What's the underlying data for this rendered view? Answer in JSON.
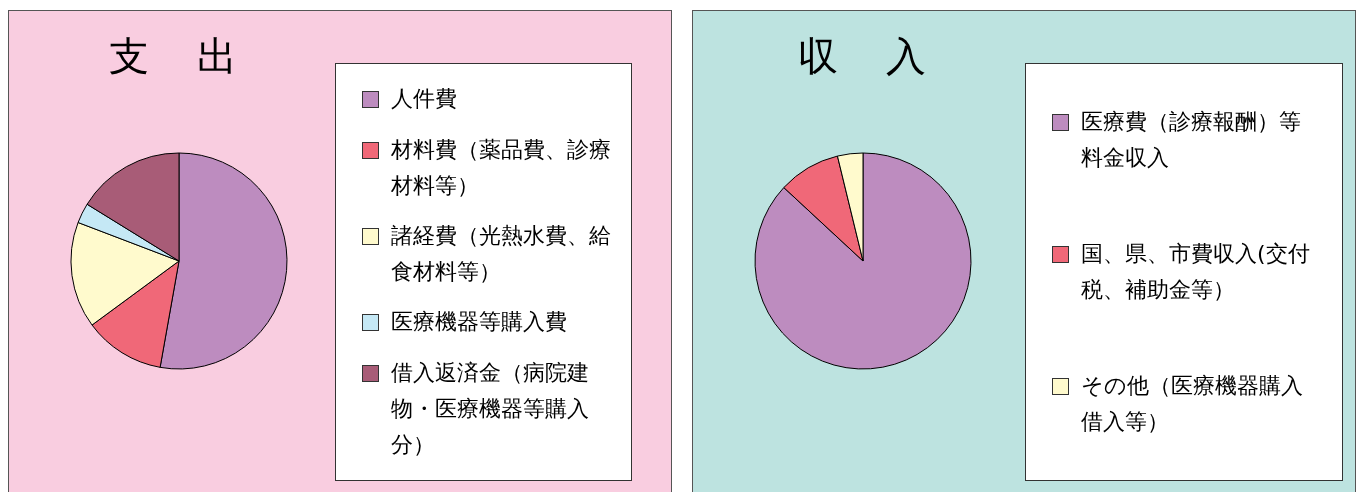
{
  "chart_data": [
    {
      "type": "pie",
      "title": "支　出",
      "categories": [
        "人件費",
        "材料費（薬品費、診療材料等）",
        "諸経費（光熱水費、給食材料等）",
        "医療機器等購入費",
        "借入返済金（病院建物・医療機器等購入分）"
      ],
      "values": [
        52.8,
        12.1,
        15.9,
        3,
        16.2
      ],
      "colors": [
        "#bd8cbf",
        "#f06878",
        "#fffacd",
        "#c5e8f5",
        "#a85c77"
      ],
      "legend": "right"
    },
    {
      "type": "pie",
      "title": "収　入",
      "categories": [
        "医療費（診療報酬）等料金収入",
        "国、県、市費収入(交付税、補助金等）",
        "その他（医療機器購入借入等）"
      ],
      "values": [
        86.9,
        9.3,
        3.8
      ],
      "colors": [
        "#bd8cbf",
        "#f06878",
        "#fffacd"
      ],
      "legend": "right"
    }
  ]
}
